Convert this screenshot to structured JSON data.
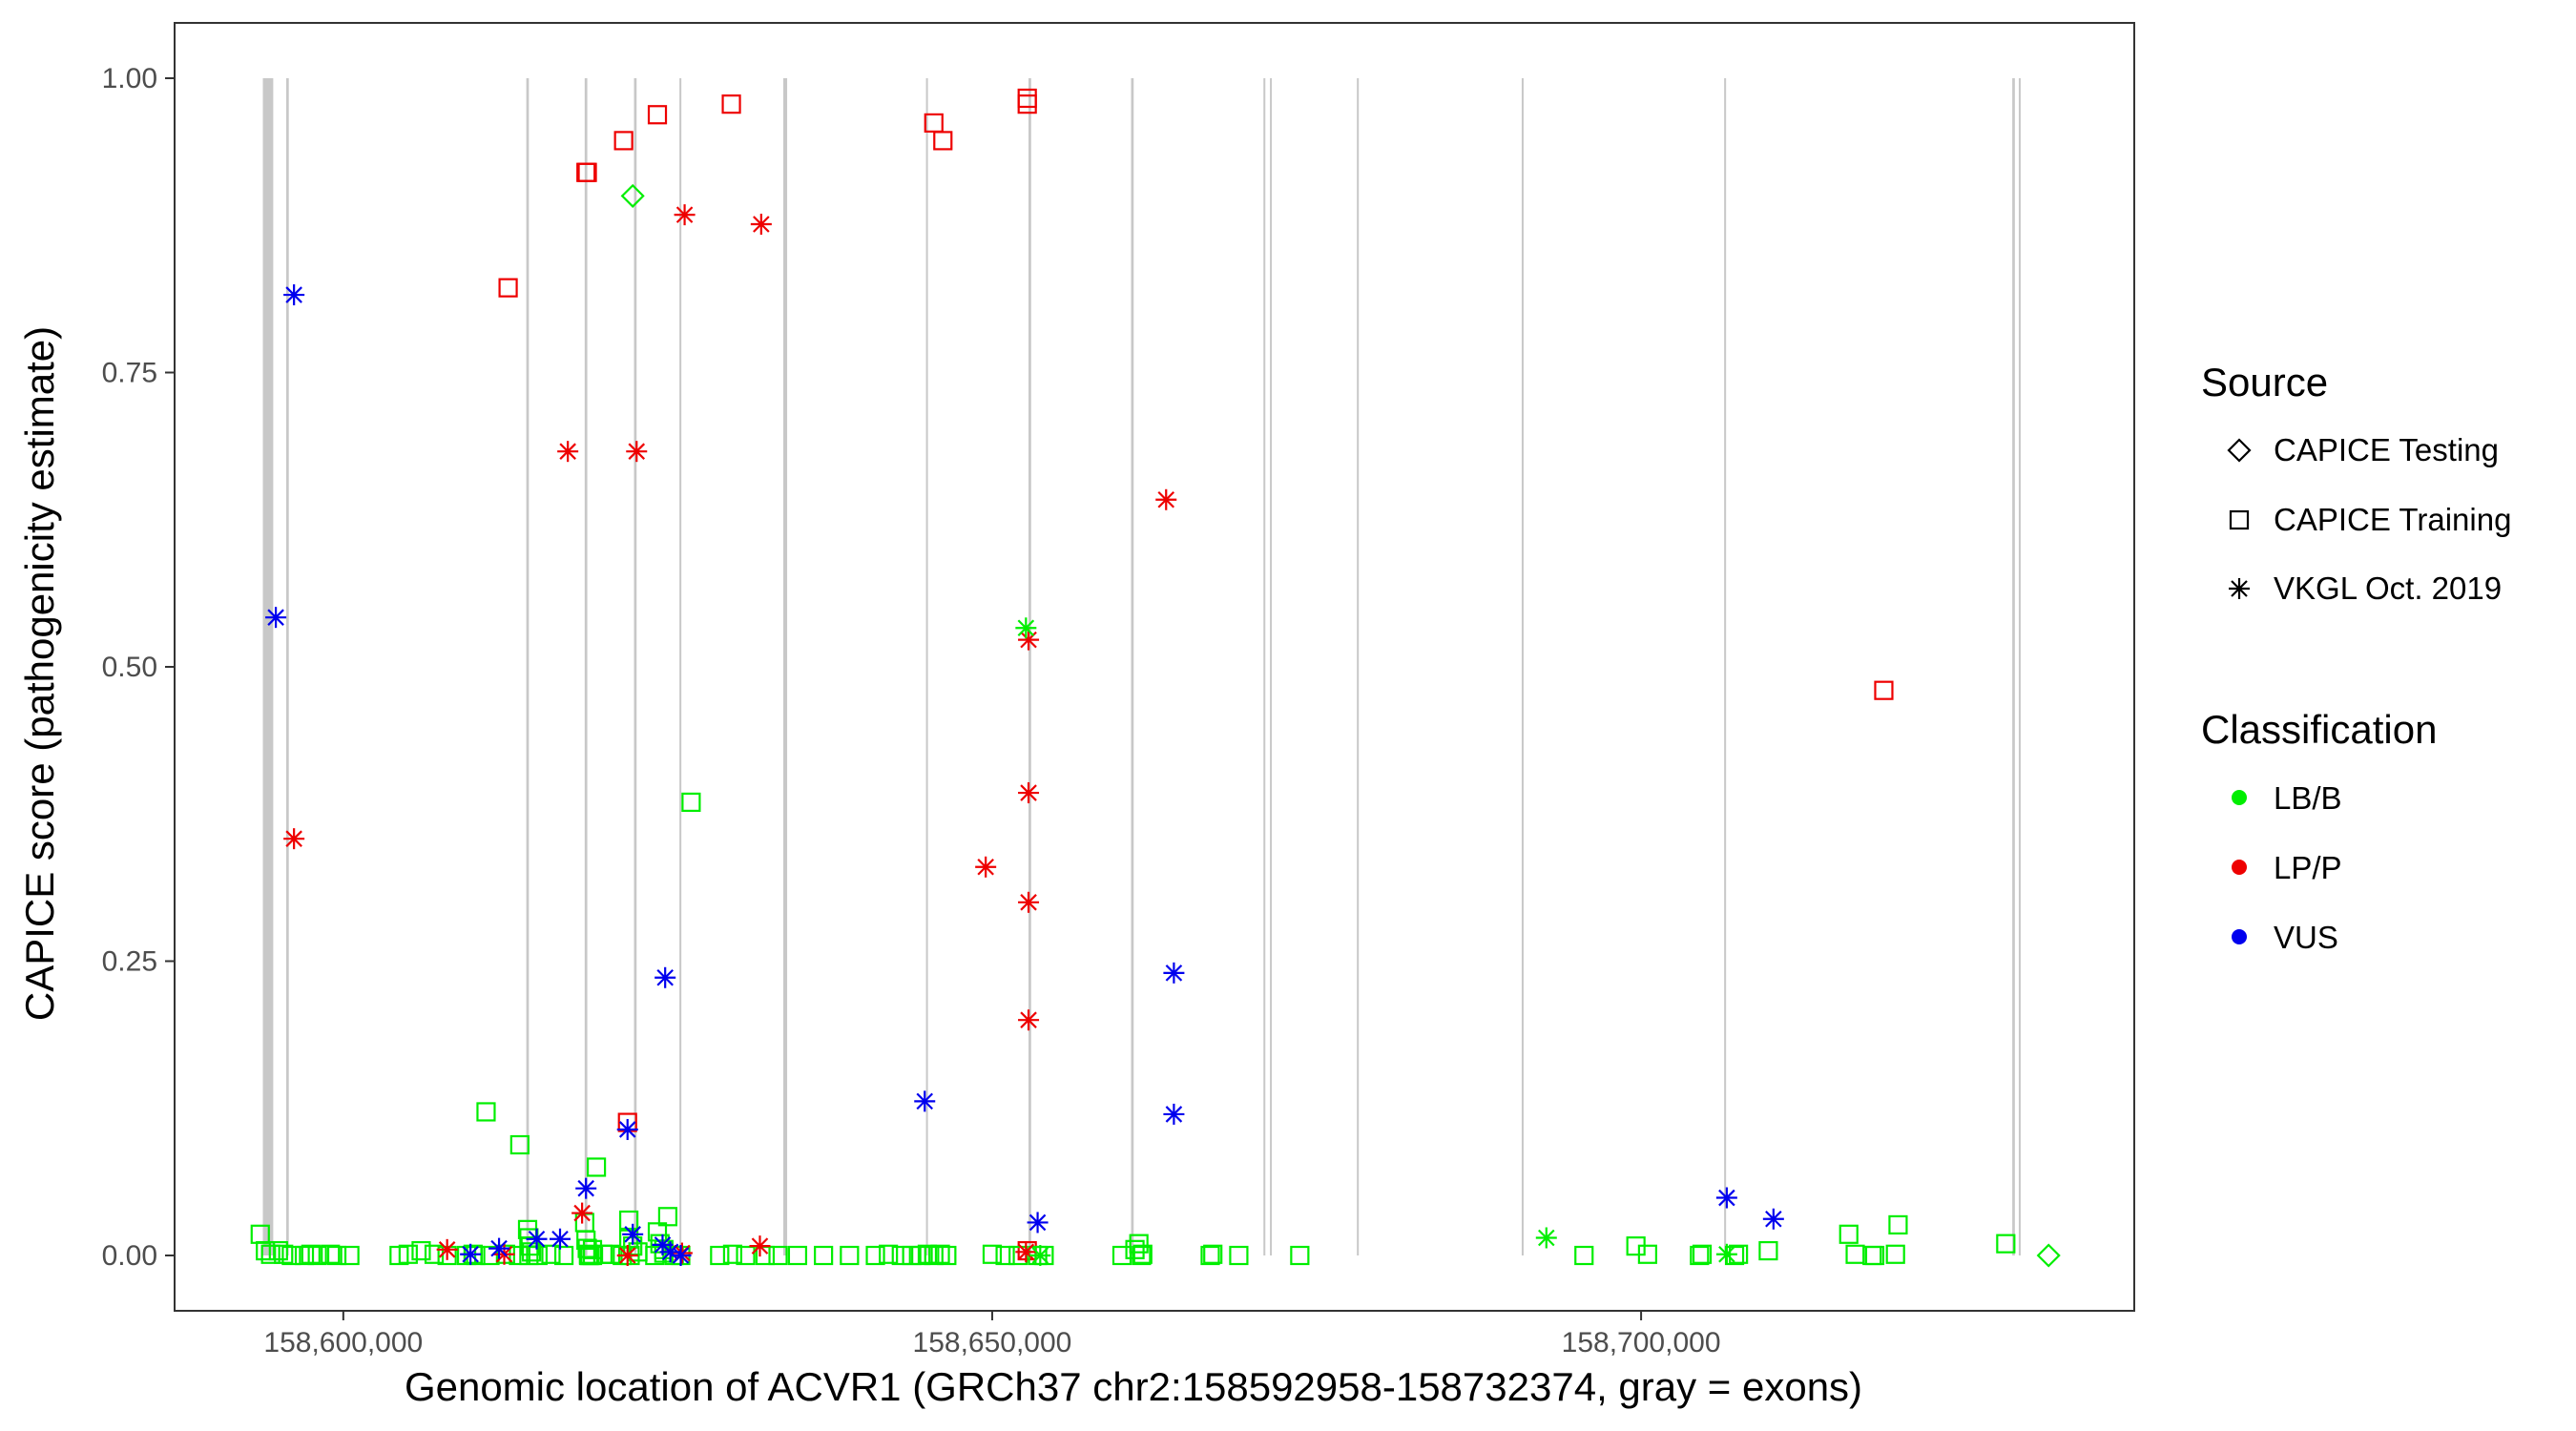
{
  "chart_data": {
    "type": "scatter",
    "title": "",
    "xlabel": "Genomic location of ACVR1 (GRCh37 chr2:158592958-158732374, gray = exons)",
    "ylabel": "CAPICE score (pathogenicity estimate)",
    "xlim": [
      158587000,
      158738000
    ],
    "ylim": [
      -0.047,
      1.047
    ],
    "x_ticks": [
      158600000,
      158650000,
      158700000
    ],
    "x_tick_labels": [
      "158,600,000",
      "158,650,000",
      "158,700,000"
    ],
    "y_ticks": [
      0,
      0.25,
      0.5,
      0.75,
      1.0
    ],
    "y_tick_labels": [
      "0.00",
      "0.25",
      "0.50",
      "0.75",
      "1.00"
    ],
    "grid": false,
    "exons": [
      {
        "start": 158593800,
        "end": 158594600
      },
      {
        "start": 158595600,
        "end": 158595800
      },
      {
        "start": 158614100,
        "end": 158614300
      },
      {
        "start": 158618600,
        "end": 158618800
      },
      {
        "start": 158622400,
        "end": 158622600
      },
      {
        "start": 158625900,
        "end": 158626000
      },
      {
        "start": 158633900,
        "end": 158634200
      },
      {
        "start": 158644900,
        "end": 158645000
      },
      {
        "start": 158652800,
        "end": 158653000
      },
      {
        "start": 158660700,
        "end": 158660900
      },
      {
        "start": 158670900,
        "end": 158671000
      },
      {
        "start": 158671400,
        "end": 158671500
      },
      {
        "start": 158678100,
        "end": 158678200
      },
      {
        "start": 158690800,
        "end": 158690900
      },
      {
        "start": 158706400,
        "end": 158706500
      },
      {
        "start": 158728600,
        "end": 158728800
      },
      {
        "start": 158729100,
        "end": 158729200
      }
    ],
    "legend": {
      "placement": "right",
      "source_title": "Source",
      "source_items": [
        {
          "label": "CAPICE Testing",
          "shape": "diamond"
        },
        {
          "label": "CAPICE Training",
          "shape": "square"
        },
        {
          "label": "VKGL Oct. 2019",
          "shape": "asterisk"
        }
      ],
      "class_title": "Classification",
      "class_items": [
        {
          "label": "LB/B",
          "color": "#00ee00"
        },
        {
          "label": "LP/P",
          "color": "#ee0000"
        },
        {
          "label": "VUS",
          "color": "#0000ee"
        }
      ]
    },
    "series": [
      {
        "source": "CAPICE Training",
        "classification": "LP/P",
        "color": "#ee0000",
        "shape": "square",
        "x": [
          158612700,
          158618700,
          158618800,
          158621600,
          158624200,
          158629900,
          158645500,
          158646200,
          158652700,
          158652700,
          158621900,
          158652700,
          158718700
        ],
        "y": [
          0.822,
          0.92,
          0.92,
          0.947,
          0.969,
          0.978,
          0.962,
          0.947,
          0.983,
          0.978,
          0.113,
          0.004,
          0.48
        ]
      },
      {
        "source": "CAPICE Training",
        "classification": "LB/B",
        "color": "#00ee00",
        "shape": "square",
        "x": [
          158593600,
          158594000,
          158594400,
          158595000,
          158595400,
          158596000,
          158597000,
          158597500,
          158598000,
          158599000,
          158599500,
          158600500,
          158604300,
          158605000,
          158606000,
          158607000,
          158608000,
          158609500,
          158610000,
          158611300,
          158612500,
          158613500,
          158614200,
          158614300,
          158614400,
          158614500,
          158615000,
          158616000,
          158617000,
          158618600,
          158618700,
          158618800,
          158618900,
          158619000,
          158619200,
          158619500,
          158620000,
          158620600,
          158621500,
          158622000,
          158622300,
          158622700,
          158624200,
          158624400,
          158624700,
          158625000,
          158625500,
          158626000,
          158629000,
          158630000,
          158631000,
          158632500,
          158633500,
          158635000,
          158637000,
          158639000,
          158641000,
          158642000,
          158643000,
          158643800,
          158644500,
          158645000,
          158645500,
          158646000,
          158646500,
          158650000,
          158651000,
          158652000,
          158653500,
          158654000,
          158660000,
          158661000,
          158661300,
          158661500,
          158661600,
          158666800,
          158667000,
          158669000,
          158673700,
          158695600,
          158699600,
          158700500,
          158704500,
          158704700,
          158707200,
          158707500,
          158709800,
          158716000,
          158716500,
          158718000,
          158719600,
          158719800,
          158728100,
          158611000,
          158613600,
          158614300,
          158619200,
          158619000,
          158622000,
          158624700,
          158626800,
          158618900,
          158622100,
          158624000,
          158717800,
          158610200
        ],
        "y": [
          0.018,
          0.004,
          0.001,
          0.004,
          0.001,
          0.0,
          0.0,
          0.001,
          0.0,
          0.001,
          0.0,
          0.0,
          0.0,
          0.001,
          0.004,
          0.001,
          0.0,
          0.0,
          0.001,
          0.0,
          0.001,
          0.0,
          0.022,
          0.015,
          0.008,
          0.003,
          0.0,
          0.001,
          0.0,
          0.028,
          0.013,
          0.006,
          0.001,
          0.0,
          0.005,
          0.075,
          0.001,
          0.001,
          0.0,
          0.03,
          0.008,
          0.003,
          0.02,
          0.01,
          0.005,
          0.033,
          0.0,
          0.0,
          0.0,
          0.001,
          0.0,
          0.0,
          0.0,
          0.0,
          0.0,
          0.0,
          0.0,
          0.001,
          0.0,
          0.0,
          0.0,
          0.001,
          0.0,
          0.001,
          0.0,
          0.001,
          0.0,
          0.0,
          0.0,
          0.0,
          0.0,
          0.005,
          0.01,
          0.0,
          0.001,
          0.0,
          0.001,
          0.0,
          0.0,
          0.0,
          0.008,
          0.001,
          0.0,
          0.001,
          0.0,
          0.001,
          0.004,
          0.018,
          0.001,
          0.0,
          0.001,
          0.026,
          0.01,
          0.122,
          0.094,
          0.0,
          0.0,
          0.0,
          0.014,
          0.002,
          0.385,
          0.0,
          0.0,
          0.0,
          0.0,
          0.0
        ],
        "note_shape_only": ""
      },
      {
        "source": "CAPICE Testing",
        "classification": "LB/B",
        "color": "#00ee00",
        "shape": "diamond",
        "x": [
          158622300,
          158731400
        ],
        "y": [
          0.9,
          0.0
        ]
      },
      {
        "source": "VKGL Oct. 2019",
        "classification": "LP/P",
        "color": "#ee0000",
        "shape": "asterisk",
        "x": [
          158596200,
          158617300,
          158622600,
          158626300,
          158632200,
          158649500,
          158652800,
          158652800,
          158652800,
          158652800,
          158663400,
          158618400,
          158608000,
          158612400,
          158621900,
          158626100,
          158632100,
          158652600
        ],
        "y": [
          0.354,
          0.683,
          0.683,
          0.884,
          0.876,
          0.33,
          0.523,
          0.393,
          0.3,
          0.2,
          0.642,
          0.036,
          0.005,
          0.001,
          0.0,
          0.002,
          0.008,
          0.003
        ]
      },
      {
        "source": "VKGL Oct. 2019",
        "classification": "VUS",
        "color": "#0000ee",
        "shape": "asterisk",
        "x": [
          158594800,
          158596200,
          158624800,
          158644800,
          158664000,
          158664000,
          158618700,
          158621900,
          158653500,
          158706600,
          158710200,
          158609800,
          158612000,
          158614900,
          158616700,
          158622300,
          158624600,
          158625200,
          158626000
        ],
        "y": [
          0.542,
          0.816,
          0.236,
          0.131,
          0.24,
          0.12,
          0.057,
          0.107,
          0.028,
          0.049,
          0.031,
          0.001,
          0.006,
          0.014,
          0.014,
          0.018,
          0.009,
          0.003,
          0.0
        ]
      },
      {
        "source": "VKGL Oct. 2019",
        "classification": "LB/B",
        "color": "#00ee00",
        "shape": "asterisk",
        "x": [
          158652600,
          158692700,
          158706600,
          158653700
        ],
        "y": [
          0.533,
          0.015,
          0.001,
          0.0
        ]
      }
    ]
  }
}
